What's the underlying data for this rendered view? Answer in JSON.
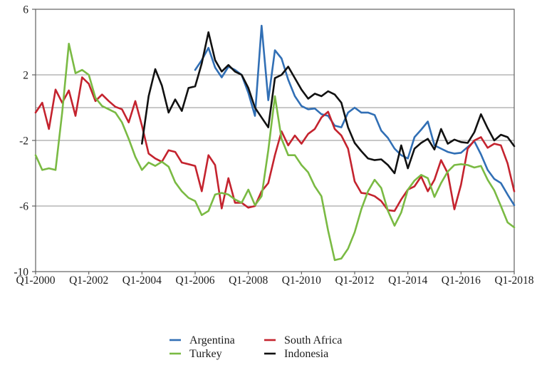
{
  "chart_data": {
    "type": "line",
    "title": "",
    "xlabel": "",
    "ylabel": "",
    "background": "#ffffff",
    "text_color": "#1c1c1c",
    "grid_color": "#909090",
    "axis_color": "#606060",
    "grid": true,
    "x_axis": {
      "kind": "quarterly",
      "first_quarter": "Q1-2000",
      "last_quarter": "Q1-2018",
      "total_quarters": 73,
      "tick_labels": [
        "Q1-2000",
        "Q1-2002",
        "Q1-2004",
        "Q1-2006",
        "Q1-2008",
        "Q1-2010",
        "Q1-2012",
        "Q1-2014",
        "Q1-2016",
        "Q1-2018"
      ],
      "tick_quarter_indices": [
        0,
        8,
        16,
        24,
        32,
        40,
        48,
        56,
        64,
        72
      ]
    },
    "y_axis": {
      "ylim": [
        -10,
        6
      ],
      "tick_labels": [
        "6",
        "2",
        "-2",
        "-6",
        "-10"
      ],
      "tick_values": [
        6,
        2,
        -2,
        -6,
        -10
      ],
      "interior_gridline_values": [
        2,
        0,
        -2,
        -6
      ]
    },
    "legend": {
      "position": "bottom-center",
      "columns": 2,
      "entries": [
        {
          "label": "Argentina",
          "color": "#316FB5"
        },
        {
          "label": "South Africa",
          "color": "#C4232E"
        },
        {
          "label": "Turkey",
          "color": "#7ABA43"
        },
        {
          "label": "Indonesia",
          "color": "#111111"
        }
      ]
    },
    "series": [
      {
        "name": "Argentina",
        "color": "#316FB5",
        "start_quarter": "Q1-2006",
        "start_index": 24,
        "values": [
          2.3,
          2.9,
          3.65,
          2.45,
          1.85,
          2.5,
          2.3,
          2.0,
          0.9,
          -0.5,
          5.0,
          0.45,
          3.5,
          3.0,
          1.7,
          0.7,
          0.1,
          -0.1,
          -0.05,
          -0.4,
          -0.5,
          -1.1,
          -1.2,
          -0.3,
          0.0,
          -0.3,
          -0.3,
          -0.45,
          -1.4,
          -1.85,
          -2.5,
          -2.9,
          -3.1,
          -1.8,
          -1.35,
          -0.85,
          -2.3,
          -2.5,
          -2.7,
          -2.8,
          -2.75,
          -2.4,
          -2.05,
          -2.85,
          -3.8,
          -4.35,
          -4.6,
          -5.3,
          -5.95
        ]
      },
      {
        "name": "Turkey",
        "color": "#7ABA43",
        "start_quarter": "Q1-2000",
        "start_index": 0,
        "values": [
          -2.9,
          -3.8,
          -3.7,
          -3.8,
          -0.3,
          3.9,
          2.1,
          2.3,
          2.0,
          0.6,
          0.1,
          -0.1,
          -0.3,
          -0.9,
          -1.9,
          -3.0,
          -3.8,
          -3.35,
          -3.55,
          -3.3,
          -3.6,
          -4.55,
          -5.1,
          -5.5,
          -5.7,
          -6.55,
          -6.3,
          -5.3,
          -5.2,
          -5.3,
          -5.6,
          -5.8,
          -5.0,
          -5.95,
          -5.4,
          -2.6,
          0.7,
          -1.9,
          -2.9,
          -2.9,
          -3.5,
          -3.95,
          -4.8,
          -5.4,
          -7.5,
          -9.3,
          -9.2,
          -8.6,
          -7.6,
          -6.2,
          -5.1,
          -4.4,
          -4.9,
          -6.3,
          -7.2,
          -6.4,
          -5.0,
          -4.45,
          -4.1,
          -4.3,
          -5.45,
          -4.6,
          -3.9,
          -3.5,
          -3.45,
          -3.5,
          -3.65,
          -3.55,
          -4.4,
          -5.05,
          -6.0,
          -7.0,
          -7.3
        ]
      },
      {
        "name": "South Africa",
        "color": "#C4232E",
        "start_quarter": "Q1-2000",
        "start_index": 0,
        "values": [
          -0.3,
          0.3,
          -1.3,
          1.1,
          0.3,
          1.05,
          -0.5,
          1.85,
          1.45,
          0.4,
          0.8,
          0.4,
          0.05,
          -0.1,
          -0.9,
          0.4,
          -1.1,
          -2.8,
          -3.1,
          -3.3,
          -2.6,
          -2.7,
          -3.35,
          -3.45,
          -3.55,
          -5.1,
          -2.9,
          -3.5,
          -6.15,
          -4.3,
          -5.8,
          -5.8,
          -6.1,
          -6.0,
          -5.1,
          -4.6,
          -2.9,
          -1.45,
          -2.3,
          -1.7,
          -2.2,
          -1.6,
          -1.3,
          -0.6,
          -0.25,
          -1.3,
          -1.7,
          -2.5,
          -4.5,
          -5.2,
          -5.25,
          -5.4,
          -5.7,
          -6.25,
          -6.3,
          -5.6,
          -5.0,
          -4.8,
          -4.2,
          -5.1,
          -4.4,
          -3.2,
          -4.0,
          -6.2,
          -4.7,
          -2.5,
          -2.0,
          -1.8,
          -2.45,
          -2.2,
          -2.3,
          -3.4,
          -5.1
        ]
      },
      {
        "name": "Indonesia",
        "color": "#111111",
        "start_quarter": "Q1-2004",
        "start_index": 16,
        "values": [
          -2.2,
          0.7,
          2.35,
          1.35,
          -0.3,
          0.5,
          -0.2,
          1.2,
          1.3,
          2.7,
          4.6,
          2.9,
          2.2,
          2.6,
          2.2,
          2.0,
          1.2,
          0.0,
          -0.6,
          -1.2,
          1.8,
          2.0,
          2.5,
          1.8,
          1.1,
          0.55,
          0.85,
          0.7,
          1.0,
          0.8,
          0.3,
          -1.2,
          -2.15,
          -2.65,
          -3.1,
          -3.2,
          -3.15,
          -3.5,
          -4.0,
          -2.3,
          -3.7,
          -2.5,
          -2.15,
          -1.9,
          -2.55,
          -1.3,
          -2.2,
          -1.95,
          -2.1,
          -2.15,
          -1.5,
          -0.4,
          -1.25,
          -2.0,
          -1.65,
          -1.8,
          -2.35
        ]
      }
    ]
  }
}
